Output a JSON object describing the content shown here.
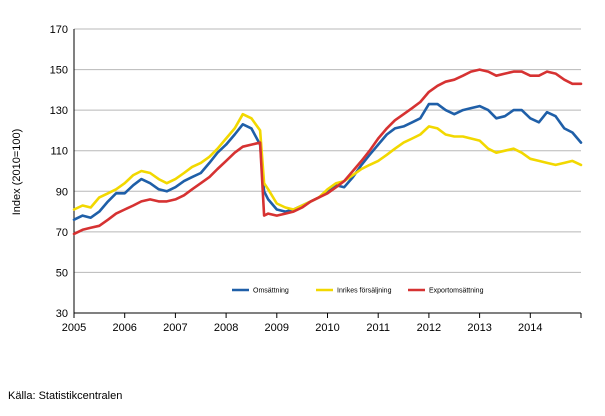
{
  "source": "Källa: Statistikcentralen",
  "chart_data": {
    "type": "line",
    "ylabel": "Index (2010=100)",
    "xlabel": "",
    "ylim": [
      30,
      170
    ],
    "yticks": [
      30,
      50,
      70,
      90,
      110,
      130,
      150,
      170
    ],
    "xlim": [
      2005,
      2015
    ],
    "xticks": [
      "2005",
      "2006",
      "2007",
      "2008",
      "2009",
      "2010",
      "2011",
      "2012",
      "2013",
      "2014"
    ],
    "grid": "horizontal",
    "legend_position": "bottom-right inside plot",
    "series": [
      {
        "name": "Omsättning",
        "color": "#1f5fa8",
        "points": [
          [
            2005.0,
            76
          ],
          [
            2005.17,
            78
          ],
          [
            2005.33,
            77
          ],
          [
            2005.5,
            80
          ],
          [
            2005.67,
            85
          ],
          [
            2005.83,
            89
          ],
          [
            2006.0,
            89
          ],
          [
            2006.17,
            93
          ],
          [
            2006.33,
            96
          ],
          [
            2006.5,
            94
          ],
          [
            2006.67,
            91
          ],
          [
            2006.83,
            90
          ],
          [
            2007.0,
            92
          ],
          [
            2007.17,
            95
          ],
          [
            2007.33,
            97
          ],
          [
            2007.5,
            99
          ],
          [
            2007.67,
            104
          ],
          [
            2007.83,
            109
          ],
          [
            2008.0,
            113
          ],
          [
            2008.17,
            118
          ],
          [
            2008.33,
            123
          ],
          [
            2008.5,
            121
          ],
          [
            2008.67,
            113
          ],
          [
            2008.75,
            90
          ],
          [
            2008.83,
            86
          ],
          [
            2009.0,
            81
          ],
          [
            2009.17,
            80
          ],
          [
            2009.33,
            81
          ],
          [
            2009.5,
            83
          ],
          [
            2009.67,
            85
          ],
          [
            2009.83,
            87
          ],
          [
            2010.0,
            90
          ],
          [
            2010.17,
            93
          ],
          [
            2010.33,
            92
          ],
          [
            2010.5,
            97
          ],
          [
            2010.67,
            103
          ],
          [
            2010.83,
            108
          ],
          [
            2011.0,
            113
          ],
          [
            2011.17,
            118
          ],
          [
            2011.33,
            121
          ],
          [
            2011.5,
            122
          ],
          [
            2011.67,
            124
          ],
          [
            2011.83,
            126
          ],
          [
            2012.0,
            133
          ],
          [
            2012.17,
            133
          ],
          [
            2012.33,
            130
          ],
          [
            2012.5,
            128
          ],
          [
            2012.67,
            130
          ],
          [
            2012.83,
            131
          ],
          [
            2013.0,
            132
          ],
          [
            2013.17,
            130
          ],
          [
            2013.33,
            126
          ],
          [
            2013.5,
            127
          ],
          [
            2013.67,
            130
          ],
          [
            2013.83,
            130
          ],
          [
            2014.0,
            126
          ],
          [
            2014.17,
            124
          ],
          [
            2014.33,
            129
          ],
          [
            2014.5,
            127
          ],
          [
            2014.67,
            121
          ],
          [
            2014.83,
            119
          ],
          [
            2015.0,
            114
          ]
        ]
      },
      {
        "name": "Inrikes försäljning",
        "color": "#f2d800",
        "points": [
          [
            2005.0,
            81
          ],
          [
            2005.17,
            83
          ],
          [
            2005.33,
            82
          ],
          [
            2005.5,
            87
          ],
          [
            2005.67,
            89
          ],
          [
            2005.83,
            91
          ],
          [
            2006.0,
            94
          ],
          [
            2006.17,
            98
          ],
          [
            2006.33,
            100
          ],
          [
            2006.5,
            99
          ],
          [
            2006.67,
            96
          ],
          [
            2006.83,
            94
          ],
          [
            2007.0,
            96
          ],
          [
            2007.17,
            99
          ],
          [
            2007.33,
            102
          ],
          [
            2007.5,
            104
          ],
          [
            2007.67,
            107
          ],
          [
            2007.83,
            111
          ],
          [
            2008.0,
            116
          ],
          [
            2008.17,
            121
          ],
          [
            2008.33,
            128
          ],
          [
            2008.5,
            126
          ],
          [
            2008.67,
            120
          ],
          [
            2008.75,
            94
          ],
          [
            2008.83,
            91
          ],
          [
            2009.0,
            84
          ],
          [
            2009.17,
            82
          ],
          [
            2009.33,
            81
          ],
          [
            2009.5,
            83
          ],
          [
            2009.67,
            85
          ],
          [
            2009.83,
            87
          ],
          [
            2010.0,
            91
          ],
          [
            2010.17,
            94
          ],
          [
            2010.33,
            95
          ],
          [
            2010.5,
            98
          ],
          [
            2010.67,
            101
          ],
          [
            2010.83,
            103
          ],
          [
            2011.0,
            105
          ],
          [
            2011.17,
            108
          ],
          [
            2011.33,
            111
          ],
          [
            2011.5,
            114
          ],
          [
            2011.67,
            116
          ],
          [
            2011.83,
            118
          ],
          [
            2012.0,
            122
          ],
          [
            2012.17,
            121
          ],
          [
            2012.33,
            118
          ],
          [
            2012.5,
            117
          ],
          [
            2012.67,
            117
          ],
          [
            2012.83,
            116
          ],
          [
            2013.0,
            115
          ],
          [
            2013.17,
            111
          ],
          [
            2013.33,
            109
          ],
          [
            2013.5,
            110
          ],
          [
            2013.67,
            111
          ],
          [
            2013.83,
            109
          ],
          [
            2014.0,
            106
          ],
          [
            2014.17,
            105
          ],
          [
            2014.33,
            104
          ],
          [
            2014.5,
            103
          ],
          [
            2014.67,
            104
          ],
          [
            2014.83,
            105
          ],
          [
            2015.0,
            103
          ]
        ]
      },
      {
        "name": "Exportomsättning",
        "color": "#d63232",
        "points": [
          [
            2005.0,
            69
          ],
          [
            2005.17,
            71
          ],
          [
            2005.33,
            72
          ],
          [
            2005.5,
            73
          ],
          [
            2005.67,
            76
          ],
          [
            2005.83,
            79
          ],
          [
            2006.0,
            81
          ],
          [
            2006.17,
            83
          ],
          [
            2006.33,
            85
          ],
          [
            2006.5,
            86
          ],
          [
            2006.67,
            85
          ],
          [
            2006.83,
            85
          ],
          [
            2007.0,
            86
          ],
          [
            2007.17,
            88
          ],
          [
            2007.33,
            91
          ],
          [
            2007.5,
            94
          ],
          [
            2007.67,
            97
          ],
          [
            2007.83,
            101
          ],
          [
            2008.0,
            105
          ],
          [
            2008.17,
            109
          ],
          [
            2008.33,
            112
          ],
          [
            2008.5,
            113
          ],
          [
            2008.67,
            114
          ],
          [
            2008.75,
            78
          ],
          [
            2008.83,
            79
          ],
          [
            2009.0,
            78
          ],
          [
            2009.17,
            79
          ],
          [
            2009.33,
            80
          ],
          [
            2009.5,
            82
          ],
          [
            2009.67,
            85
          ],
          [
            2009.83,
            87
          ],
          [
            2010.0,
            89
          ],
          [
            2010.17,
            92
          ],
          [
            2010.33,
            95
          ],
          [
            2010.5,
            100
          ],
          [
            2010.67,
            105
          ],
          [
            2010.83,
            110
          ],
          [
            2011.0,
            116
          ],
          [
            2011.17,
            121
          ],
          [
            2011.33,
            125
          ],
          [
            2011.5,
            128
          ],
          [
            2011.67,
            131
          ],
          [
            2011.83,
            134
          ],
          [
            2012.0,
            139
          ],
          [
            2012.17,
            142
          ],
          [
            2012.33,
            144
          ],
          [
            2012.5,
            145
          ],
          [
            2012.67,
            147
          ],
          [
            2012.83,
            149
          ],
          [
            2013.0,
            150
          ],
          [
            2013.17,
            149
          ],
          [
            2013.33,
            147
          ],
          [
            2013.5,
            148
          ],
          [
            2013.67,
            149
          ],
          [
            2013.83,
            149
          ],
          [
            2014.0,
            147
          ],
          [
            2014.17,
            147
          ],
          [
            2014.33,
            149
          ],
          [
            2014.5,
            148
          ],
          [
            2014.67,
            145
          ],
          [
            2014.83,
            143
          ],
          [
            2015.0,
            143
          ]
        ]
      }
    ]
  }
}
